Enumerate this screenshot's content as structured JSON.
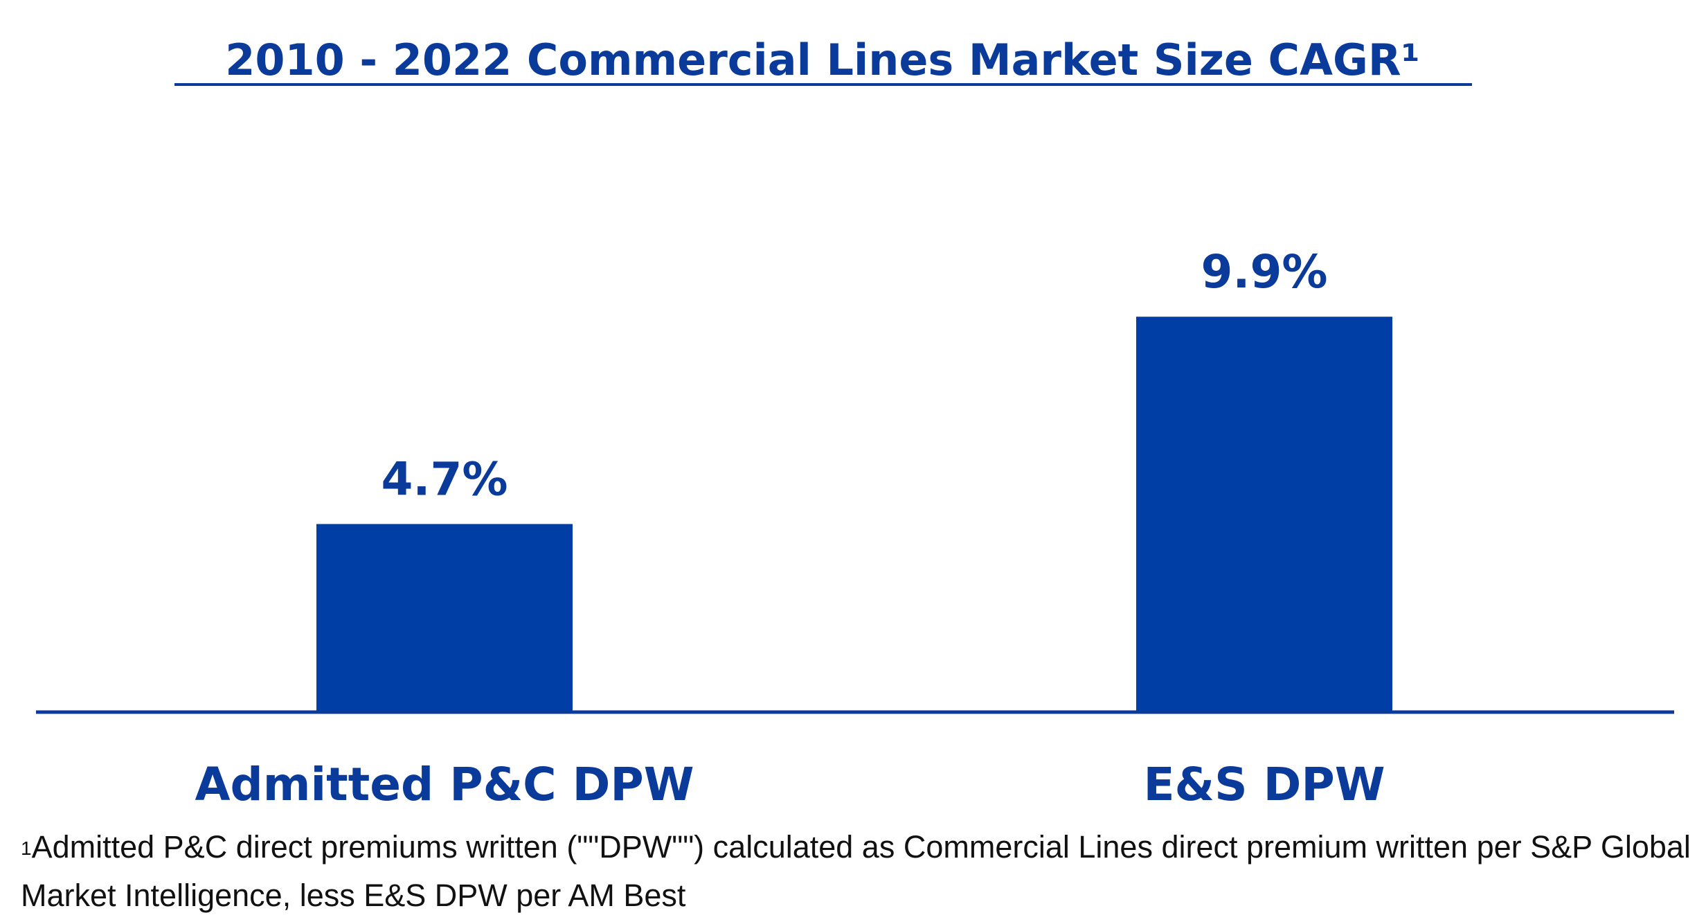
{
  "chart_data": {
    "type": "bar",
    "title": "2010 - 2022 Commercial Lines Market Size CAGR¹",
    "categories": [
      "Admitted P&C DPW",
      "E&S DPW"
    ],
    "values": [
      4.7,
      9.9
    ],
    "value_labels": [
      "4.7%",
      "9.9%"
    ],
    "unit": "%",
    "xlabel": "",
    "ylabel": "",
    "ylim": [
      0,
      13.5
    ],
    "grid": false,
    "legend": "none",
    "bar_color": "#003da5",
    "text_color": "#0a3a9a",
    "axis_color": "#0a3a9a"
  },
  "footnote": {
    "marker": "1",
    "text": "Admitted P&C direct premiums written (\"\"DPW\"\") calculated as Commercial Lines direct premium written per S&P Global Market Intelligence, less E&S DPW per AM Best"
  }
}
